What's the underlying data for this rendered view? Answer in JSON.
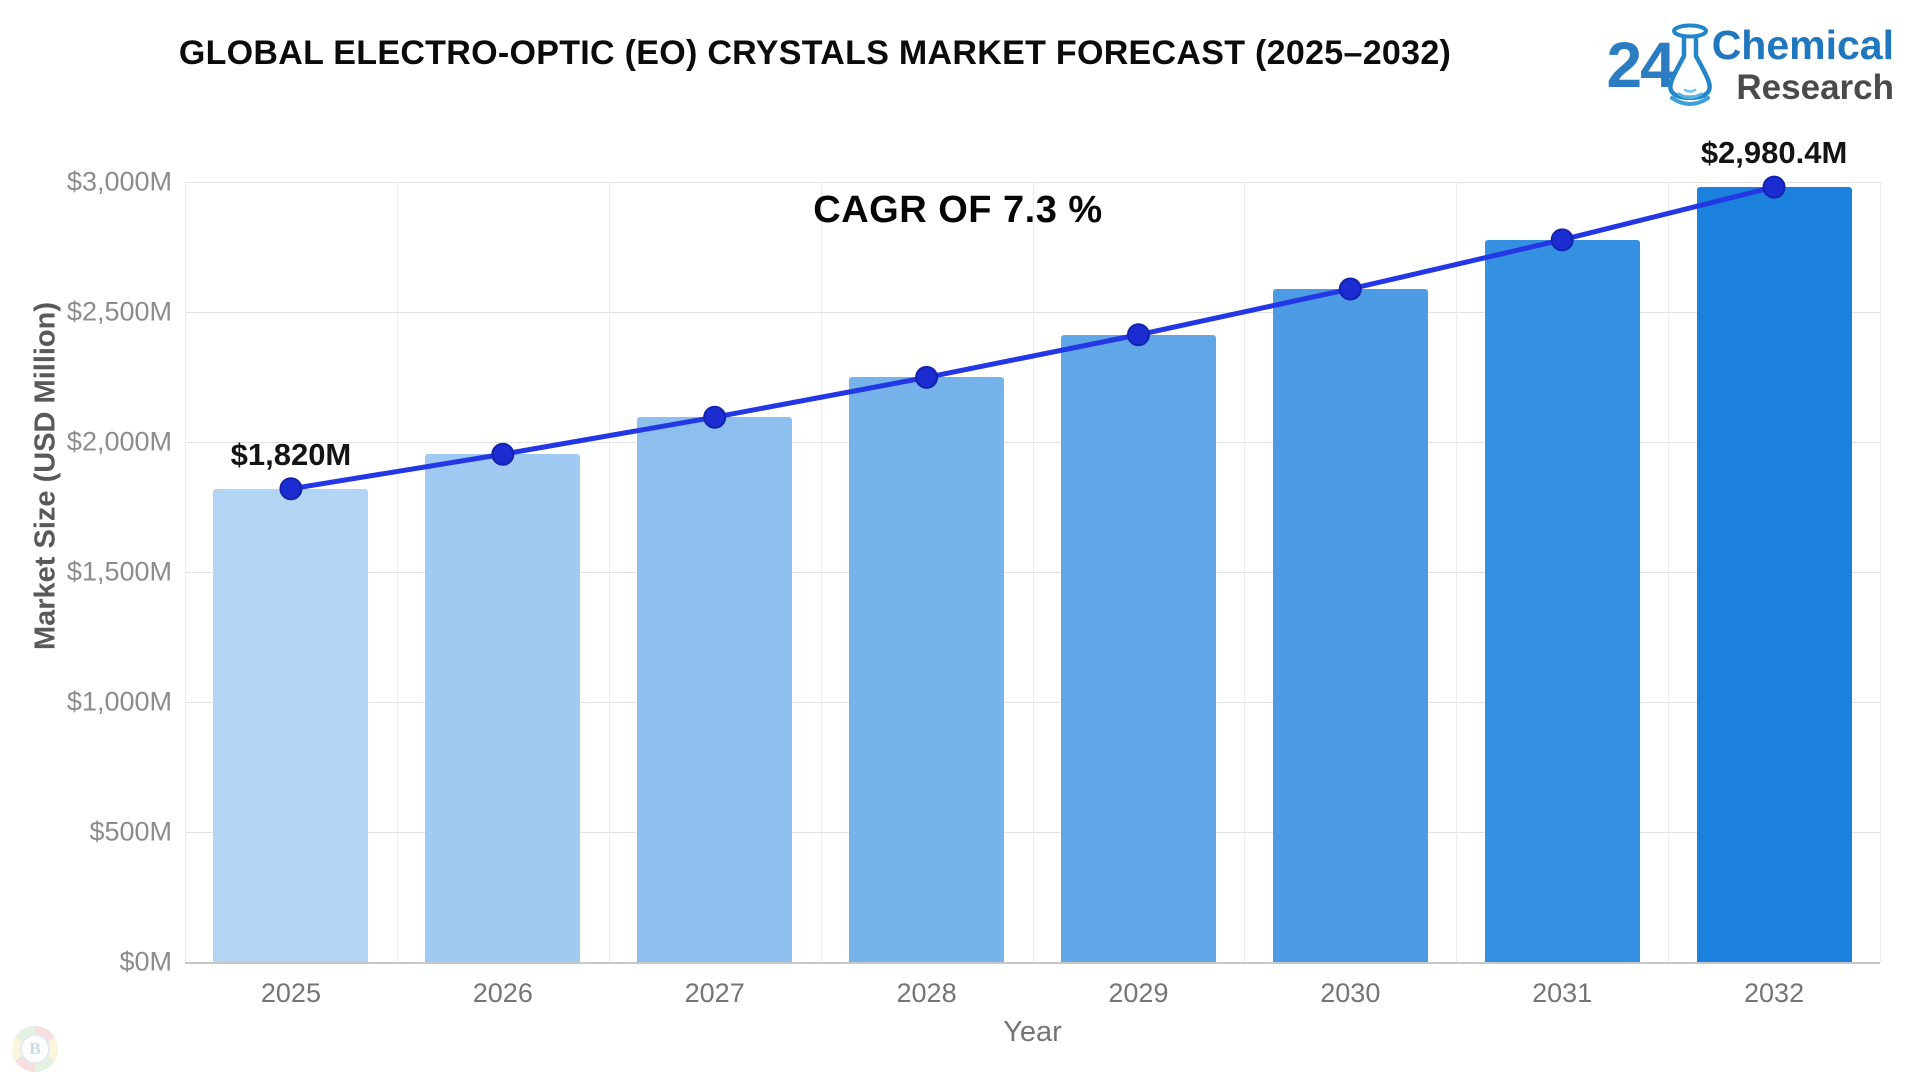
{
  "header": {
    "logo": {
      "number": "24",
      "word1": "Chemical",
      "word2": "Research"
    }
  },
  "watermark": {
    "letter": "B"
  },
  "chart_data": {
    "type": "bar",
    "overlay": "line",
    "title": "GLOBAL ELECTRO-OPTIC (EO) CRYSTALS MARKET FORECAST (2025–2032)",
    "xlabel": "Year",
    "ylabel": "Market Size (USD Million)",
    "categories": [
      "2025",
      "2026",
      "2027",
      "2028",
      "2029",
      "2030",
      "2031",
      "2032"
    ],
    "values": [
      1820,
      1952.9,
      2095.4,
      2248.4,
      2412.5,
      2588.6,
      2777.6,
      2980.4
    ],
    "ylim": [
      0,
      3000
    ],
    "ytick_step": 500,
    "ytick_labels": [
      "$0M",
      "$500M",
      "$1,000M",
      "$1,500M",
      "$2,000M",
      "$2,500M",
      "$3,000M"
    ],
    "grid": true,
    "legend": false,
    "bar_colors": [
      "#b3d5f4",
      "#a0caf1",
      "#8cbfee",
      "#77b3eb",
      "#61a7e8",
      "#4c9be4",
      "#3690e1",
      "#1b81dc"
    ],
    "line_color": "#2437e4",
    "marker_color": "#1b2cd0",
    "marker_stroke": "#1423ae",
    "annotations": {
      "cagr_label": "CAGR OF 7.3 %",
      "first_point_label": "$1,820M",
      "last_point_label": "$2,980.4M"
    }
  }
}
